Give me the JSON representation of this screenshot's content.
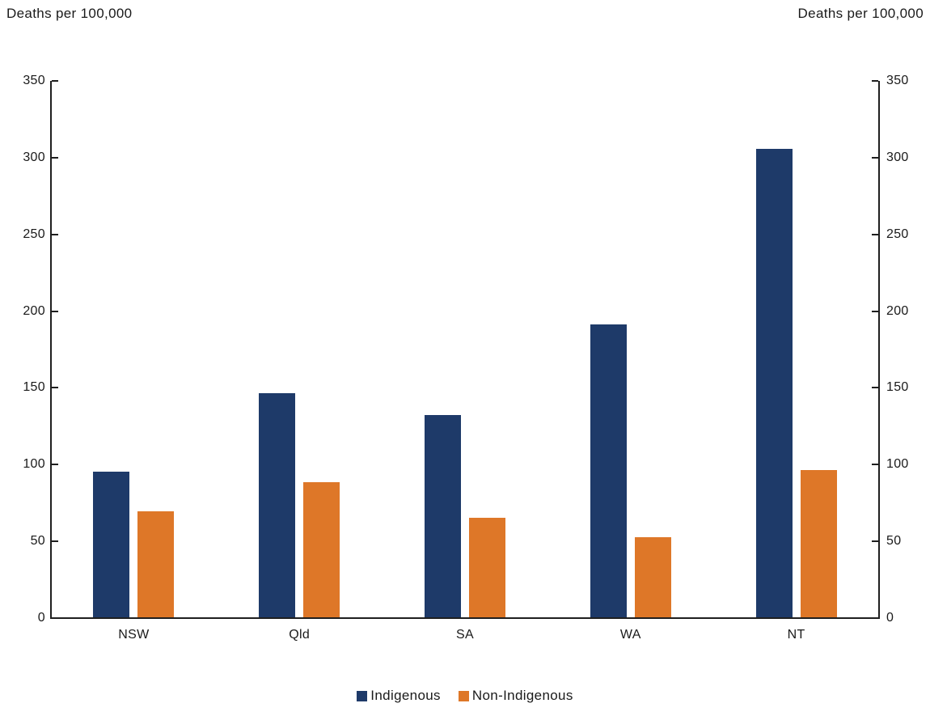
{
  "header": {
    "left_axis_title": "Deaths per 100,000",
    "right_axis_title": "Deaths per 100,000"
  },
  "chart_data": {
    "type": "bar",
    "title": "",
    "categories": [
      "NSW",
      "Qld",
      "SA",
      "WA",
      "NT"
    ],
    "series": [
      {
        "name": "Indigenous",
        "color": "#1E3A69",
        "values": [
          95,
          146,
          132,
          191,
          305
        ]
      },
      {
        "name": "Non-Indigenous",
        "color": "#DE7728",
        "values": [
          69,
          88,
          65,
          52,
          96
        ]
      }
    ],
    "ylabel_left": "Deaths per 100,000",
    "ylabel_right": "Deaths per 100,000",
    "ylim": [
      0,
      350
    ],
    "y_ticks": [
      0,
      50,
      100,
      150,
      200,
      250,
      300,
      350
    ],
    "grid": false,
    "dual_axis": true,
    "legend_position": "bottom"
  },
  "colors": {
    "axis": "#1f1f1f",
    "text": "#1a1a1a",
    "background": "#ffffff"
  }
}
